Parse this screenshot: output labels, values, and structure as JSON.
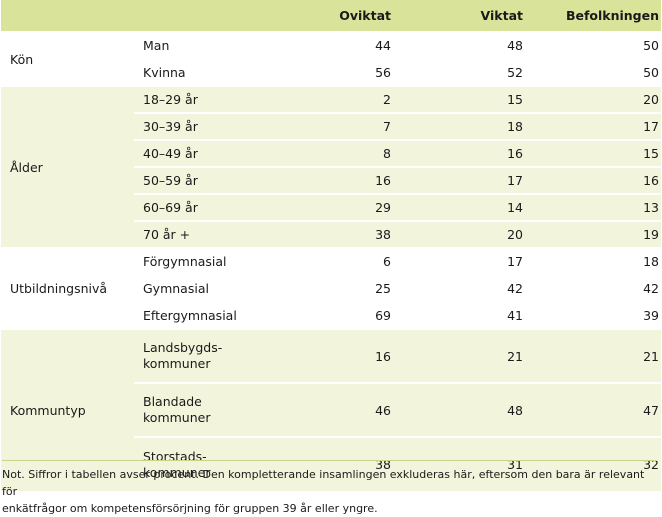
{
  "table": {
    "headers": [
      "",
      "",
      "Oviktat",
      "Viktat",
      "Befolkningen"
    ],
    "groups": [
      {
        "label": "Kön",
        "rows": [
          {
            "sub": "Man",
            "oviktat": "44",
            "viktat": "48",
            "befolkningen": "50"
          },
          {
            "sub": "Kvinna",
            "oviktat": "56",
            "viktat": "52",
            "befolkningen": "50"
          }
        ]
      },
      {
        "label": "Ålder",
        "rows": [
          {
            "sub": "18–29 år",
            "oviktat": "2",
            "viktat": "15",
            "befolkningen": "20"
          },
          {
            "sub": "30–39 år",
            "oviktat": "7",
            "viktat": "18",
            "befolkningen": "17"
          },
          {
            "sub": "40–49 år",
            "oviktat": "8",
            "viktat": "16",
            "befolkningen": "15"
          },
          {
            "sub": "50–59 år",
            "oviktat": "16",
            "viktat": "17",
            "befolkningen": "16"
          },
          {
            "sub": "60–69 år",
            "oviktat": "29",
            "viktat": "14",
            "befolkningen": "13"
          },
          {
            "sub": "70 år +",
            "oviktat": "38",
            "viktat": "20",
            "befolkningen": "19"
          }
        ]
      },
      {
        "label": "Utbildningsnivå",
        "rows": [
          {
            "sub": "Förgymnasial",
            "oviktat": "6",
            "viktat": "17",
            "befolkningen": "18"
          },
          {
            "sub": "Gymnasial",
            "oviktat": "25",
            "viktat": "42",
            "befolkningen": "42"
          },
          {
            "sub": "Eftergymnasial",
            "oviktat": "69",
            "viktat": "41",
            "befolkningen": "39"
          }
        ]
      },
      {
        "label": "Kommuntyp",
        "rows": [
          {
            "sub1": "Landsbygds-",
            "sub2": "kommuner",
            "oviktat": "16",
            "viktat": "21",
            "befolkningen": "21"
          },
          {
            "sub1": "Blandade",
            "sub2": "kommuner",
            "oviktat": "46",
            "viktat": "48",
            "befolkningen": "47"
          },
          {
            "sub1": "Storstads-",
            "sub2": "kommuner",
            "oviktat": "38",
            "viktat": "31",
            "befolkningen": "32"
          }
        ]
      }
    ]
  },
  "note": {
    "line1": "Not. Siffror i tabellen avser procent. Den kompletterande insamlingen exkluderas här, eftersom den bara är relevant för",
    "line2": "enkätfrågor om kompetensförsörjning för gruppen 39 år eller yngre."
  }
}
